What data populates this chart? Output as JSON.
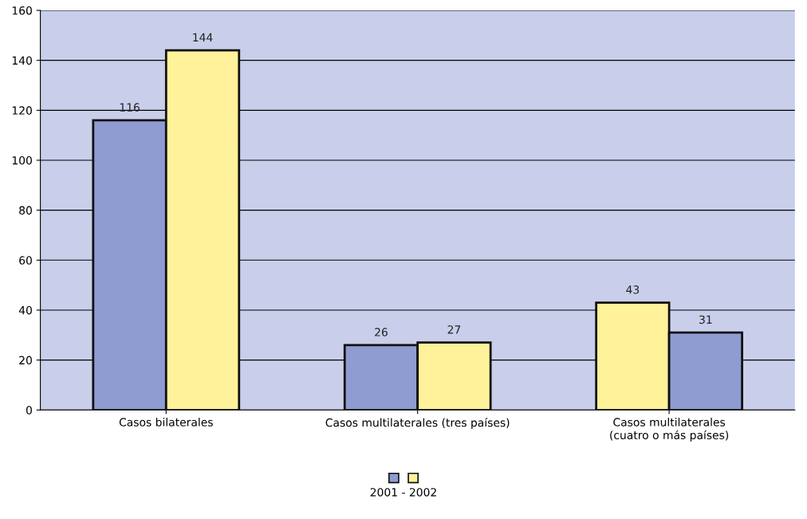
{
  "chart_data": {
    "type": "bar",
    "categories": [
      "Casos bilaterales",
      "Casos multilaterales (tres países)",
      "Casos multilaterales\n(cuatro o más países)"
    ],
    "series": [
      {
        "colors": [
          "#8f9cd2",
          "#8f9cd2",
          "#fff29a"
        ],
        "values": [
          116,
          26,
          43
        ]
      },
      {
        "colors": [
          "#fff29a",
          "#fff29a",
          "#8f9cd2"
        ],
        "values": [
          144,
          27,
          31
        ]
      }
    ],
    "ylim": [
      0,
      160
    ],
    "yticks": [
      0,
      20,
      40,
      60,
      80,
      100,
      120,
      140,
      160
    ],
    "grid": "y",
    "data_labels": true,
    "annotations": [
      "2001 - 2002"
    ]
  }
}
